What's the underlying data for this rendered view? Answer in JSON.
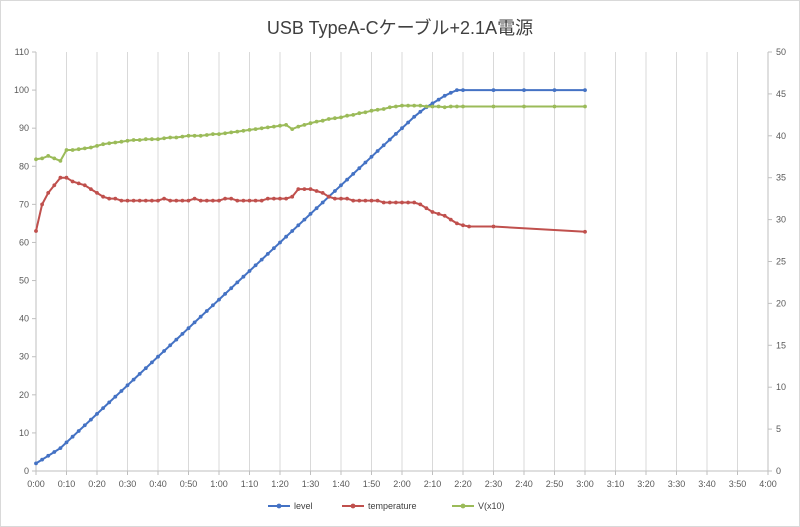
{
  "chart_data": {
    "type": "line",
    "title": "USB TypeA-Cケーブル+2.1A電源",
    "x_ticks": [
      "0:00",
      "0:10",
      "0:20",
      "0:30",
      "0:40",
      "0:50",
      "1:00",
      "1:10",
      "1:20",
      "1:30",
      "1:40",
      "1:50",
      "2:00",
      "2:10",
      "2:20",
      "2:30",
      "2:40",
      "2:50",
      "3:00",
      "3:10",
      "3:20",
      "3:30",
      "3:40",
      "3:50",
      "4:00"
    ],
    "xlim_minutes": [
      0,
      240
    ],
    "left_axis": {
      "ylim": [
        0,
        110
      ],
      "ticks": [
        0,
        10,
        20,
        30,
        40,
        50,
        60,
        70,
        80,
        90,
        100,
        110
      ]
    },
    "right_axis": {
      "ylim": [
        0,
        50
      ],
      "ticks": [
        0,
        5,
        10,
        15,
        20,
        25,
        30,
        35,
        40,
        45,
        50
      ]
    },
    "grid": "vertical",
    "legend_position": "bottom",
    "series": [
      {
        "name": "level",
        "color": "#4472c4",
        "axis": "left",
        "points": [
          [
            0,
            2
          ],
          [
            2,
            3
          ],
          [
            4,
            4
          ],
          [
            6,
            5
          ],
          [
            8,
            6
          ],
          [
            10,
            7.5
          ],
          [
            12,
            9
          ],
          [
            14,
            10.5
          ],
          [
            16,
            12
          ],
          [
            18,
            13.5
          ],
          [
            20,
            15
          ],
          [
            22,
            16.5
          ],
          [
            24,
            18
          ],
          [
            26,
            19.5
          ],
          [
            28,
            21
          ],
          [
            30,
            22.5
          ],
          [
            32,
            24
          ],
          [
            34,
            25.5
          ],
          [
            36,
            27
          ],
          [
            38,
            28.5
          ],
          [
            40,
            30
          ],
          [
            42,
            31.5
          ],
          [
            44,
            33
          ],
          [
            46,
            34.5
          ],
          [
            48,
            36
          ],
          [
            50,
            37.5
          ],
          [
            52,
            39
          ],
          [
            54,
            40.5
          ],
          [
            56,
            42
          ],
          [
            58,
            43.5
          ],
          [
            60,
            45
          ],
          [
            62,
            46.5
          ],
          [
            64,
            48
          ],
          [
            66,
            49.5
          ],
          [
            68,
            51
          ],
          [
            70,
            52.5
          ],
          [
            72,
            54
          ],
          [
            74,
            55.5
          ],
          [
            76,
            57
          ],
          [
            78,
            58.5
          ],
          [
            80,
            60
          ],
          [
            82,
            61.5
          ],
          [
            84,
            63
          ],
          [
            86,
            64.5
          ],
          [
            88,
            66
          ],
          [
            90,
            67.5
          ],
          [
            92,
            69
          ],
          [
            94,
            70.5
          ],
          [
            96,
            72
          ],
          [
            98,
            73.5
          ],
          [
            100,
            75
          ],
          [
            102,
            76.5
          ],
          [
            104,
            78
          ],
          [
            106,
            79.5
          ],
          [
            108,
            81
          ],
          [
            110,
            82.5
          ],
          [
            112,
            84
          ],
          [
            114,
            85.5
          ],
          [
            116,
            87
          ],
          [
            118,
            88.5
          ],
          [
            120,
            90
          ],
          [
            122,
            91.5
          ],
          [
            124,
            93
          ],
          [
            126,
            94.3
          ],
          [
            128,
            95.5
          ],
          [
            130,
            96.5
          ],
          [
            132,
            97.5
          ],
          [
            134,
            98.5
          ],
          [
            136,
            99.3
          ],
          [
            138,
            100
          ],
          [
            140,
            100
          ],
          [
            150,
            100
          ],
          [
            160,
            100
          ],
          [
            170,
            100
          ],
          [
            180,
            100
          ]
        ]
      },
      {
        "name": "temperature",
        "color": "#c0504d",
        "axis": "left",
        "points": [
          [
            0,
            63
          ],
          [
            2,
            70
          ],
          [
            4,
            73
          ],
          [
            6,
            75
          ],
          [
            8,
            77
          ],
          [
            10,
            77
          ],
          [
            12,
            76
          ],
          [
            14,
            75.5
          ],
          [
            16,
            75
          ],
          [
            18,
            74
          ],
          [
            20,
            73
          ],
          [
            22,
            72
          ],
          [
            24,
            71.5
          ],
          [
            26,
            71.5
          ],
          [
            28,
            71
          ],
          [
            30,
            71
          ],
          [
            32,
            71
          ],
          [
            34,
            71
          ],
          [
            36,
            71
          ],
          [
            38,
            71
          ],
          [
            40,
            71
          ],
          [
            42,
            71.5
          ],
          [
            44,
            71
          ],
          [
            46,
            71
          ],
          [
            48,
            71
          ],
          [
            50,
            71
          ],
          [
            52,
            71.5
          ],
          [
            54,
            71
          ],
          [
            56,
            71
          ],
          [
            58,
            71
          ],
          [
            60,
            71
          ],
          [
            62,
            71.5
          ],
          [
            64,
            71.5
          ],
          [
            66,
            71
          ],
          [
            68,
            71
          ],
          [
            70,
            71
          ],
          [
            72,
            71
          ],
          [
            74,
            71
          ],
          [
            76,
            71.5
          ],
          [
            78,
            71.5
          ],
          [
            80,
            71.5
          ],
          [
            82,
            71.5
          ],
          [
            84,
            72
          ],
          [
            86,
            74
          ],
          [
            88,
            74
          ],
          [
            90,
            74
          ],
          [
            92,
            73.5
          ],
          [
            94,
            73
          ],
          [
            96,
            72
          ],
          [
            98,
            71.5
          ],
          [
            100,
            71.5
          ],
          [
            102,
            71.5
          ],
          [
            104,
            71
          ],
          [
            106,
            71
          ],
          [
            108,
            71
          ],
          [
            110,
            71
          ],
          [
            112,
            71
          ],
          [
            114,
            70.5
          ],
          [
            116,
            70.5
          ],
          [
            118,
            70.5
          ],
          [
            120,
            70.5
          ],
          [
            122,
            70.5
          ],
          [
            124,
            70.5
          ],
          [
            126,
            70
          ],
          [
            128,
            69
          ],
          [
            130,
            68
          ],
          [
            132,
            67.5
          ],
          [
            134,
            67
          ],
          [
            136,
            66
          ],
          [
            138,
            65
          ],
          [
            140,
            64.5
          ],
          [
            142,
            64.2
          ],
          [
            150,
            64.2
          ],
          [
            180,
            62.8
          ]
        ]
      },
      {
        "name": "V(x10)",
        "color": "#9bbb59",
        "axis": "right",
        "points": [
          [
            0,
            37.2
          ],
          [
            2,
            37.3
          ],
          [
            4,
            37.6
          ],
          [
            6,
            37.3
          ],
          [
            8,
            37.0
          ],
          [
            10,
            38.3
          ],
          [
            12,
            38.3
          ],
          [
            14,
            38.4
          ],
          [
            16,
            38.5
          ],
          [
            18,
            38.6
          ],
          [
            20,
            38.8
          ],
          [
            22,
            39.0
          ],
          [
            24,
            39.1
          ],
          [
            26,
            39.2
          ],
          [
            28,
            39.3
          ],
          [
            30,
            39.4
          ],
          [
            32,
            39.5
          ],
          [
            34,
            39.5
          ],
          [
            36,
            39.6
          ],
          [
            38,
            39.6
          ],
          [
            40,
            39.6
          ],
          [
            42,
            39.7
          ],
          [
            44,
            39.8
          ],
          [
            46,
            39.8
          ],
          [
            48,
            39.9
          ],
          [
            50,
            40.0
          ],
          [
            52,
            40.0
          ],
          [
            54,
            40.0
          ],
          [
            56,
            40.1
          ],
          [
            58,
            40.2
          ],
          [
            60,
            40.2
          ],
          [
            62,
            40.3
          ],
          [
            64,
            40.4
          ],
          [
            66,
            40.5
          ],
          [
            68,
            40.6
          ],
          [
            70,
            40.7
          ],
          [
            72,
            40.8
          ],
          [
            74,
            40.9
          ],
          [
            76,
            41.0
          ],
          [
            78,
            41.1
          ],
          [
            80,
            41.2
          ],
          [
            82,
            41.3
          ],
          [
            84,
            40.8
          ],
          [
            86,
            41.1
          ],
          [
            88,
            41.3
          ],
          [
            90,
            41.5
          ],
          [
            92,
            41.7
          ],
          [
            94,
            41.8
          ],
          [
            96,
            42.0
          ],
          [
            98,
            42.1
          ],
          [
            100,
            42.2
          ],
          [
            102,
            42.4
          ],
          [
            104,
            42.5
          ],
          [
            106,
            42.7
          ],
          [
            108,
            42.8
          ],
          [
            110,
            43.0
          ],
          [
            112,
            43.1
          ],
          [
            114,
            43.2
          ],
          [
            116,
            43.4
          ],
          [
            118,
            43.5
          ],
          [
            120,
            43.6
          ],
          [
            122,
            43.6
          ],
          [
            124,
            43.6
          ],
          [
            126,
            43.6
          ],
          [
            128,
            43.5
          ],
          [
            130,
            43.5
          ],
          [
            132,
            43.5
          ],
          [
            134,
            43.4
          ],
          [
            136,
            43.5
          ],
          [
            138,
            43.5
          ],
          [
            140,
            43.5
          ],
          [
            150,
            43.5
          ],
          [
            160,
            43.5
          ],
          [
            170,
            43.5
          ],
          [
            180,
            43.5
          ]
        ]
      }
    ]
  }
}
